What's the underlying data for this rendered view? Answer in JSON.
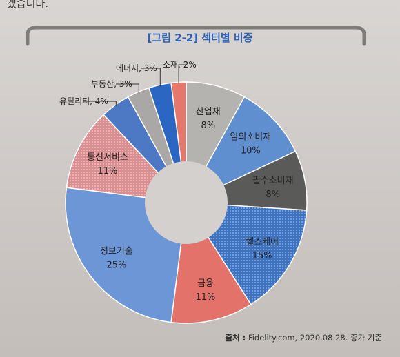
{
  "previous_text": "겠습니다.",
  "figure": {
    "title": "[그림 2-2] 섹터별 비중"
  },
  "source": {
    "label": "출처 :",
    "text": "Fidelity.com, 2020.08.28. 종가 기준"
  },
  "chart_data": {
    "type": "pie",
    "donut": true,
    "start": "top",
    "direction": "clockwise",
    "slices": [
      {
        "name": "산업재",
        "value": 8,
        "label": "8%",
        "color": "#b5b3b0",
        "pattern": "none",
        "label_position": "inside"
      },
      {
        "name": "임의소비재",
        "value": 10,
        "label": "10%",
        "color": "#5f8fcf",
        "pattern": "none",
        "label_position": "inside"
      },
      {
        "name": "필수소비재",
        "value": 8,
        "label": "8%",
        "color": "#5a5a58",
        "pattern": "none",
        "label_position": "inside"
      },
      {
        "name": "헬스케어",
        "value": 15,
        "label": "15%",
        "color": "#3c72c0",
        "pattern": "dots",
        "label_position": "inside"
      },
      {
        "name": "금융",
        "value": 11,
        "label": "11%",
        "color": "#e3726a",
        "pattern": "none",
        "label_position": "inside"
      },
      {
        "name": "정보기술",
        "value": 25,
        "label": "25%",
        "color": "#6d96d6",
        "pattern": "none",
        "label_position": "inside"
      },
      {
        "name": "통신서비스",
        "value": 11,
        "label": "11%",
        "color": "#d98d8f",
        "pattern": "dots",
        "label_position": "inside"
      },
      {
        "name": "유틸리티",
        "value": 4,
        "label": "4%",
        "color": "#4d79c4",
        "pattern": "none",
        "label_position": "outside"
      },
      {
        "name": "부동산",
        "value": 3,
        "label": "3%",
        "color": "#a9a8a6",
        "pattern": "none",
        "label_position": "outside"
      },
      {
        "name": "에너지",
        "value": 3,
        "label": "3%",
        "color": "#2a66c2",
        "pattern": "none",
        "label_position": "outside"
      },
      {
        "name": "소재",
        "value": 2,
        "label": "2%",
        "color": "#e5776d",
        "pattern": "none",
        "label_position": "outside"
      }
    ]
  }
}
